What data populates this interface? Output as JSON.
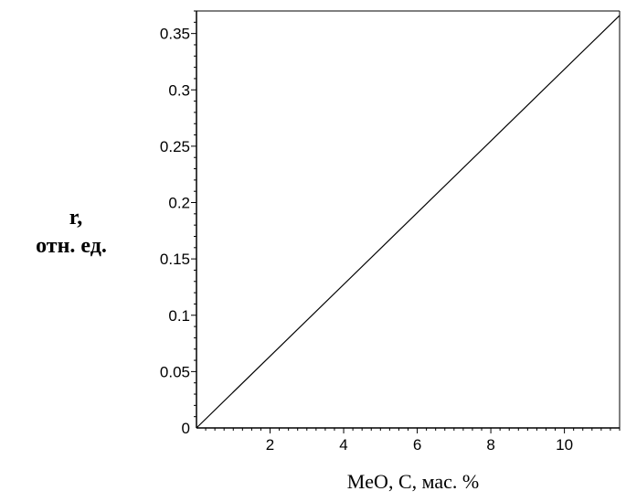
{
  "chart_data": {
    "type": "line",
    "xlabel": "MeO, C, мас. %",
    "ylabel_line1": "r,",
    "ylabel_line2": "отн. ед.",
    "xlim": [
      0,
      11.5
    ],
    "ylim": [
      0,
      0.37
    ],
    "x_ticks": [
      2,
      4,
      6,
      8,
      10
    ],
    "y_ticks": [
      0,
      0.05,
      0.1,
      0.15,
      0.2,
      0.25,
      0.3,
      0.35
    ],
    "y_tick_labels": [
      "0",
      "0.05",
      "0.1",
      "0.15",
      "0.2",
      "0.25",
      "0.3",
      "0.35"
    ],
    "grid": false,
    "series": [
      {
        "x": [
          0,
          11.5
        ],
        "y": [
          0,
          0.366
        ]
      }
    ]
  }
}
